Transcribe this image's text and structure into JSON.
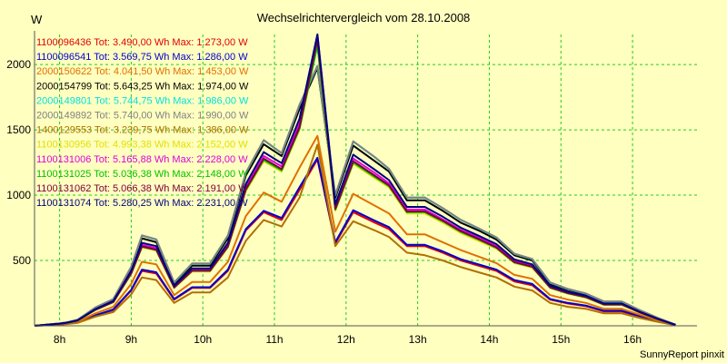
{
  "chart_data": {
    "type": "line",
    "title": "Wechselrichtervergleich vom 28.10.2008",
    "ylabel": "W",
    "footer": "SunnyReport pinxit",
    "grid": true,
    "legend_position": "top-left",
    "ylim": [
      0,
      2230
    ],
    "xlim": [
      7.65,
      16.9
    ],
    "y_ticks": [
      500,
      1000,
      1500,
      2000
    ],
    "x_ticks": [
      {
        "value": 8,
        "label": "8h"
      },
      {
        "value": 9,
        "label": "9h"
      },
      {
        "value": 10,
        "label": "10h"
      },
      {
        "value": 11,
        "label": "11h"
      },
      {
        "value": 12,
        "label": "12h"
      },
      {
        "value": 13,
        "label": "13h"
      },
      {
        "value": 14,
        "label": "14h"
      },
      {
        "value": 15,
        "label": "15h"
      },
      {
        "value": 16,
        "label": "16h"
      }
    ],
    "x": [
      7.65,
      8.0,
      8.1,
      8.25,
      8.5,
      8.75,
      9.0,
      9.15,
      9.35,
      9.6,
      9.85,
      10.1,
      10.35,
      10.6,
      10.85,
      11.1,
      11.35,
      11.6,
      11.85,
      12.1,
      12.4,
      12.6,
      12.85,
      13.1,
      13.35,
      13.6,
      13.85,
      14.1,
      14.35,
      14.6,
      14.85,
      15.1,
      15.35,
      15.6,
      15.85,
      16.1,
      16.35,
      16.6
    ],
    "series": [
      {
        "name": "1100096436",
        "color": "#e00000",
        "total": "Tot: 3.490,00 Wh",
        "max": "Max: 1.273,00 W",
        "values": [
          0,
          10,
          15,
          25,
          80,
          120,
          270,
          420,
          400,
          200,
          290,
          290,
          420,
          730,
          870,
          810,
          1040,
          1273,
          630,
          870,
          790,
          740,
          610,
          610,
          560,
          500,
          460,
          420,
          340,
          310,
          200,
          170,
          150,
          110,
          110,
          70,
          35,
          5
        ]
      },
      {
        "name": "1100096541",
        "color": "#0000d0",
        "total": "Tot: 3.569,75 Wh",
        "max": "Max: 1.286,00 W",
        "values": [
          0,
          10,
          15,
          25,
          80,
          125,
          275,
          430,
          410,
          205,
          295,
          295,
          430,
          740,
          880,
          825,
          1060,
          1286,
          640,
          885,
          805,
          755,
          620,
          620,
          570,
          510,
          470,
          430,
          350,
          320,
          205,
          175,
          155,
          115,
          115,
          75,
          38,
          5
        ]
      },
      {
        "name": "2000150622",
        "color": "#e07000",
        "total": "Tot: 4.041,50 Wh",
        "max": "Max: 1.453,00 W",
        "values": [
          0,
          12,
          18,
          30,
          95,
          145,
          320,
          490,
          470,
          235,
          335,
          335,
          490,
          840,
          1020,
          950,
          1210,
          1453,
          720,
          1010,
          920,
          860,
          700,
          700,
          640,
          580,
          530,
          480,
          390,
          360,
          235,
          200,
          175,
          130,
          130,
          85,
          42,
          6
        ]
      },
      {
        "name": "2000154799",
        "color": "#000000",
        "total": "Tot: 5.643,25 Wh",
        "max": "Max: 1.974,00 W",
        "values": [
          0,
          18,
          25,
          45,
          135,
          200,
          440,
          670,
          640,
          320,
          460,
          460,
          670,
          1150,
          1390,
          1300,
          1660,
          1974,
          980,
          1380,
          1260,
          1180,
          960,
          960,
          880,
          790,
          730,
          660,
          540,
          500,
          320,
          275,
          240,
          180,
          180,
          115,
          58,
          8
        ]
      },
      {
        "name": "2000149801",
        "color": "#00e0e0",
        "total": "Tot: 5.744,75 Wh",
        "max": "Max: 1.986,00 W",
        "values": [
          0,
          18,
          26,
          46,
          140,
          205,
          450,
          690,
          660,
          330,
          475,
          475,
          690,
          1170,
          1420,
          1320,
          1690,
          1986,
          1000,
          1410,
          1290,
          1200,
          980,
          980,
          900,
          810,
          745,
          675,
          550,
          510,
          330,
          280,
          245,
          185,
          185,
          118,
          60,
          8
        ]
      },
      {
        "name": "2000149892",
        "color": "#808080",
        "total": "Tot: 5.740,00 Wh",
        "max": "Max: 1.990,00 W",
        "values": [
          0,
          18,
          26,
          46,
          140,
          205,
          452,
          692,
          662,
          332,
          477,
          477,
          692,
          1172,
          1422,
          1322,
          1692,
          1990,
          1002,
          1412,
          1292,
          1202,
          982,
          982,
          902,
          812,
          747,
          677,
          552,
          512,
          332,
          282,
          247,
          187,
          187,
          120,
          61,
          8
        ]
      },
      {
        "name": "1400129553",
        "color": "#b07000",
        "total": "Tot: 3.239,75 Wh",
        "max": "Max: 1.386,00 W",
        "values": [
          0,
          9,
          13,
          22,
          70,
          105,
          240,
          370,
          350,
          175,
          255,
          255,
          370,
          650,
          810,
          760,
          980,
          1386,
          610,
          800,
          730,
          680,
          560,
          540,
          500,
          450,
          410,
          370,
          300,
          270,
          175,
          145,
          130,
          95,
          95,
          60,
          30,
          4
        ]
      },
      {
        "name": "1100130956",
        "color": "#e0e000",
        "total": "Tot: 4.993,38 Wh",
        "max": "Max: 2.152,00 W",
        "values": [
          0,
          16,
          22,
          40,
          120,
          180,
          395,
          600,
          575,
          290,
          415,
          415,
          600,
          1030,
          1260,
          1180,
          1500,
          2152,
          880,
          1240,
          1130,
          1060,
          860,
          860,
          790,
          710,
          650,
          590,
          480,
          445,
          290,
          245,
          215,
          160,
          160,
          100,
          50,
          7
        ]
      },
      {
        "name": "1100131006",
        "color": "#e000e0",
        "total": "Tot: 5.165,88 Wh",
        "max": "Max: 2.228,00 W",
        "values": [
          0,
          16,
          23,
          41,
          125,
          185,
          410,
          620,
          595,
          300,
          430,
          430,
          620,
          1060,
          1300,
          1220,
          1550,
          2228,
          910,
          1280,
          1170,
          1090,
          890,
          890,
          815,
          735,
          675,
          610,
          495,
          460,
          300,
          255,
          225,
          165,
          165,
          105,
          52,
          7
        ]
      },
      {
        "name": "1100131025",
        "color": "#00c000",
        "total": "Tot: 5.036,38 Wh",
        "max": "Max: 2.148,00 W",
        "values": [
          0,
          16,
          22,
          40,
          122,
          182,
          400,
          605,
          580,
          292,
          420,
          420,
          605,
          1040,
          1270,
          1190,
          1510,
          2148,
          890,
          1250,
          1140,
          1070,
          870,
          870,
          800,
          720,
          660,
          597,
          485,
          450,
          292,
          248,
          218,
          162,
          162,
          102,
          51,
          7
        ]
      },
      {
        "name": "1100131062",
        "color": "#800040",
        "total": "Tot: 5.066,38 Wh",
        "max": "Max: 2.191,00 W",
        "values": [
          0,
          16,
          22,
          40,
          123,
          183,
          402,
          608,
          583,
          294,
          422,
          422,
          608,
          1045,
          1280,
          1200,
          1520,
          2191,
          895,
          1260,
          1150,
          1075,
          875,
          875,
          805,
          725,
          665,
          600,
          488,
          452,
          294,
          250,
          220,
          163,
          163,
          103,
          51,
          7
        ]
      },
      {
        "name": "1100131074",
        "color": "#000080",
        "total": "Tot: 5.280,25 Wh",
        "max": "Max: 2.231,00 W",
        "values": [
          0,
          17,
          24,
          42,
          128,
          190,
          420,
          635,
          610,
          307,
          440,
          440,
          635,
          1085,
          1330,
          1245,
          1585,
          2231,
          930,
          1310,
          1195,
          1115,
          910,
          910,
          835,
          752,
          690,
          625,
          508,
          470,
          307,
          260,
          230,
          170,
          170,
          108,
          54,
          7
        ]
      }
    ]
  }
}
